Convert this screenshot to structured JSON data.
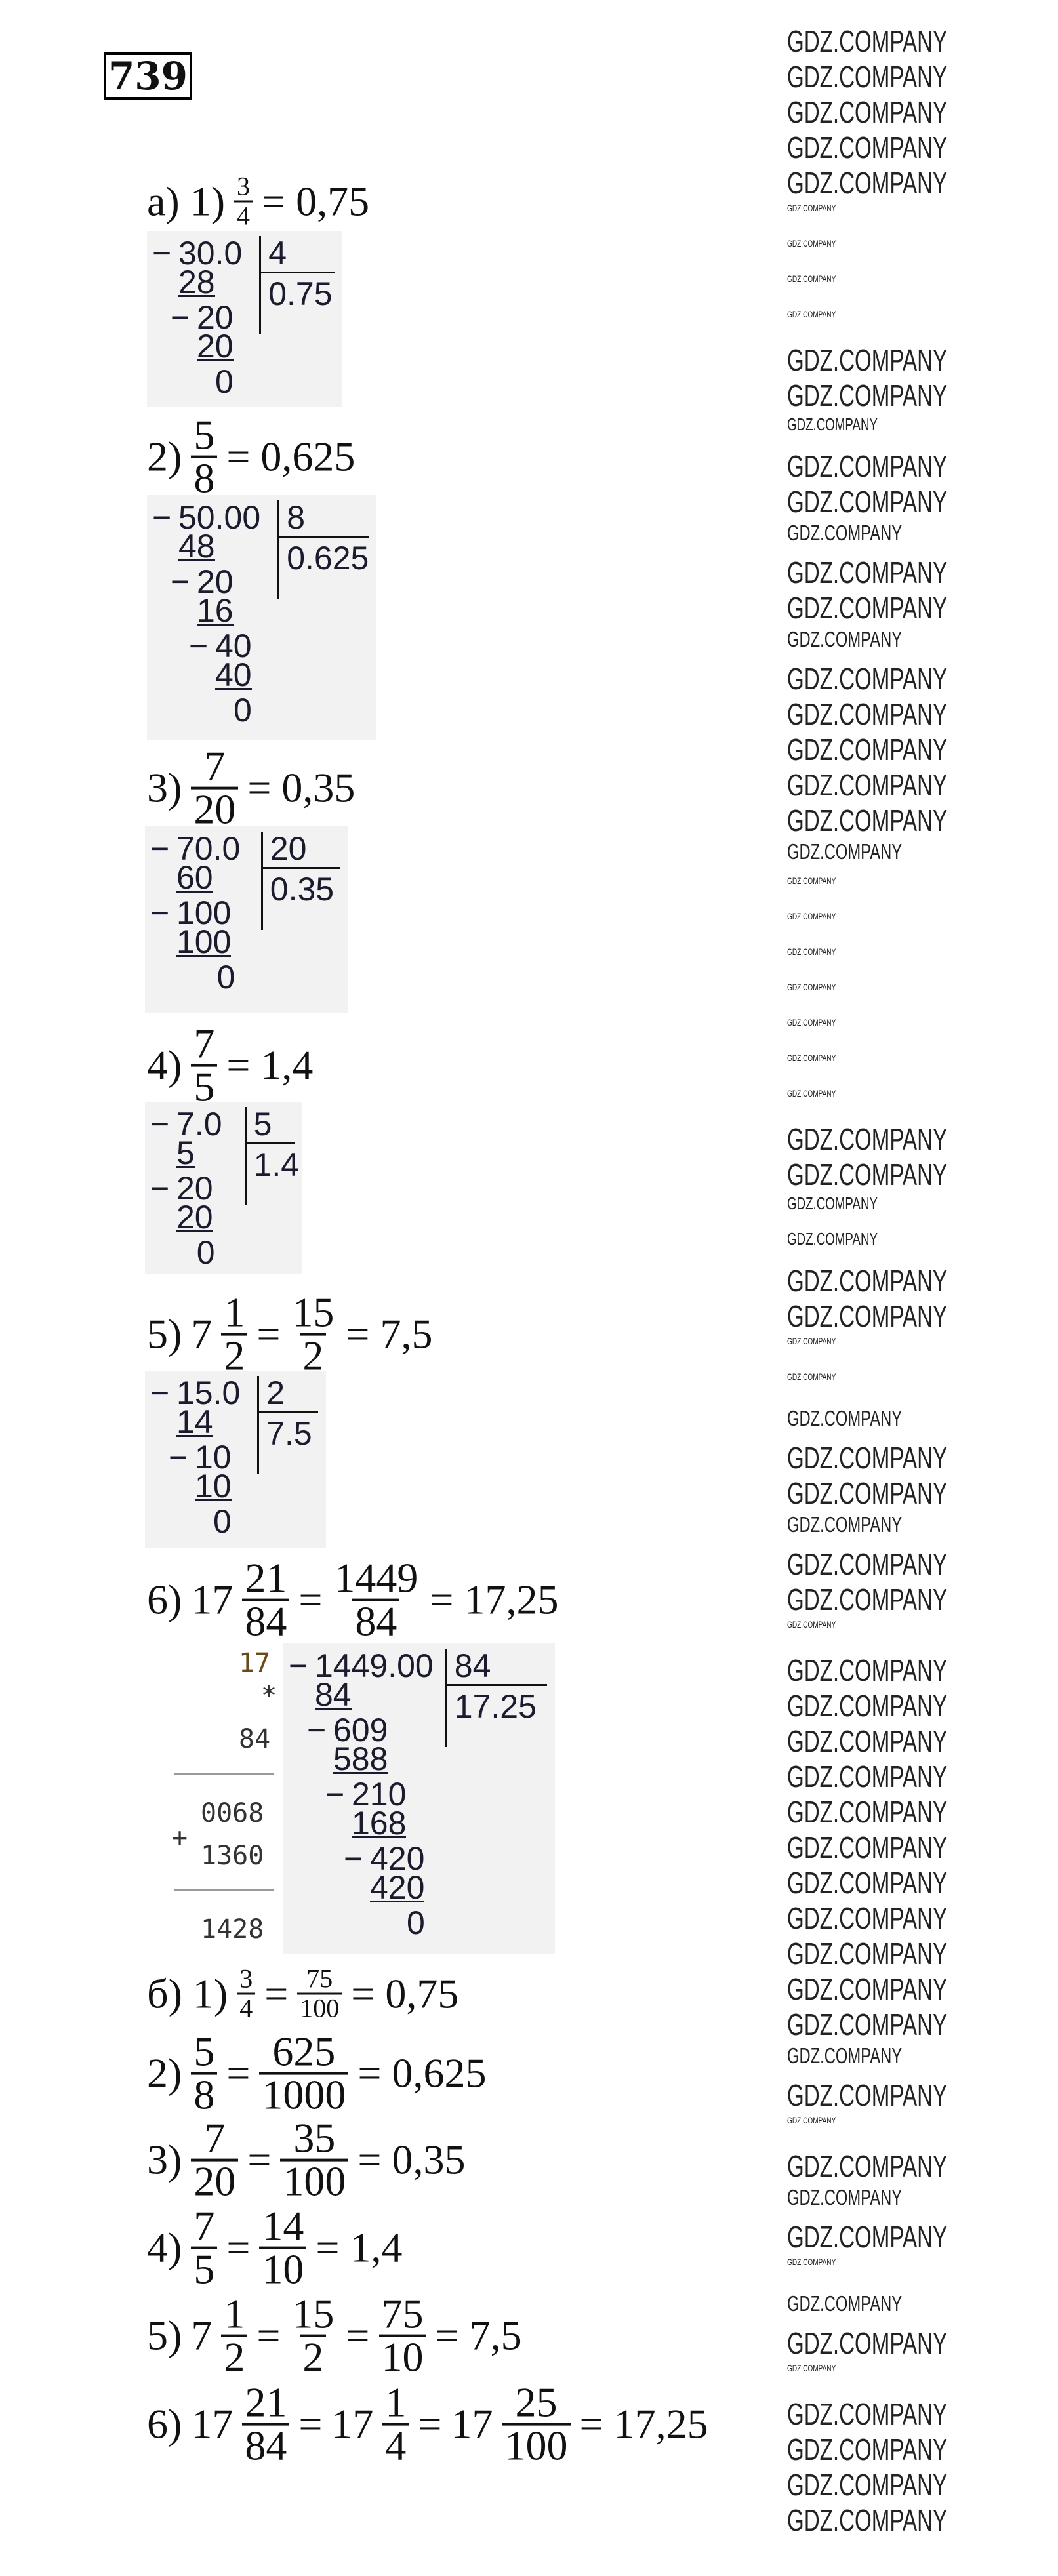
{
  "task_number": "739",
  "watermark": "GDZ.COMPANY",
  "minus_sign": "−",
  "part_a": [
    {
      "tokens": [
        {
          "t": "a) 1)"
        },
        {
          "n": "3",
          "d": "4",
          "small": true
        },
        {
          "t": "= 0,75"
        }
      ]
    },
    {
      "tokens": [
        {
          "t": "2)"
        },
        {
          "n": "5",
          "d": "8"
        },
        {
          "t": "= 0,625"
        }
      ]
    },
    {
      "tokens": [
        {
          "t": "3)"
        },
        {
          "n": "7",
          "d": "20"
        },
        {
          "t": "= 0,35"
        }
      ]
    },
    {
      "tokens": [
        {
          "t": "4)"
        },
        {
          "n": "7",
          "d": "5"
        },
        {
          "t": "= 1,4"
        }
      ]
    },
    {
      "tokens": [
        {
          "t": "5)"
        },
        {
          "t": "7"
        },
        {
          "n": "1",
          "d": "2"
        },
        {
          "t": "="
        },
        {
          "n": "15",
          "d": "2"
        },
        {
          "t": "= 7,5"
        }
      ]
    },
    {
      "tokens": [
        {
          "t": "6)"
        },
        {
          "t": "17"
        },
        {
          "n": "21",
          "d": "84"
        },
        {
          "t": "="
        },
        {
          "n": "1449",
          "d": "84"
        },
        {
          "t": "= 17,25"
        }
      ]
    }
  ],
  "divisions": [
    {
      "dividend": "30.0",
      "divisor": "4",
      "quotient": "0.75",
      "steps": [
        {
          "v": "28",
          "u": true
        },
        {
          "v": "20",
          "m": true
        },
        {
          "v": "20",
          "u": true
        },
        {
          "v": "0"
        }
      ]
    },
    {
      "dividend": "50.00",
      "divisor": "8",
      "quotient": "0.625",
      "steps": [
        {
          "v": "48",
          "u": true
        },
        {
          "v": "20",
          "m": true
        },
        {
          "v": "16",
          "u": true
        },
        {
          "v": "40",
          "m": true
        },
        {
          "v": "40",
          "u": true
        },
        {
          "v": "0"
        }
      ]
    },
    {
      "dividend": "70.0",
      "divisor": "20",
      "quotient": "0.35",
      "steps": [
        {
          "v": "60",
          "u": true
        },
        {
          "v": "100",
          "m": true
        },
        {
          "v": "100",
          "u": true
        },
        {
          "v": "0"
        }
      ]
    },
    {
      "dividend": "7.0",
      "divisor": "5",
      "quotient": "1.4",
      "steps": [
        {
          "v": "5",
          "u": true
        },
        {
          "v": "20",
          "m": true
        },
        {
          "v": "20",
          "u": true
        },
        {
          "v": "0"
        }
      ]
    },
    {
      "dividend": "15.0",
      "divisor": "2",
      "quotient": "7.5",
      "steps": [
        {
          "v": "14",
          "u": true
        },
        {
          "v": "10",
          "m": true
        },
        {
          "v": "10",
          "u": true
        },
        {
          "v": "0"
        }
      ]
    },
    {
      "dividend": "1449.00",
      "divisor": "84",
      "quotient": "17.25",
      "steps": [
        {
          "v": "84",
          "u": true
        },
        {
          "v": "609",
          "m": true
        },
        {
          "v": "588",
          "u": true
        },
        {
          "v": "210",
          "m": true
        },
        {
          "v": "168",
          "u": true
        },
        {
          "v": "420",
          "m": true
        },
        {
          "v": "420",
          "u": true
        },
        {
          "v": "0"
        }
      ]
    }
  ],
  "multiplication": {
    "a": "17",
    "op": "*",
    "b": "84",
    "p1": "0068",
    "plus": "+",
    "p2": "1360",
    "result": "1428"
  },
  "part_b": [
    {
      "tokens": [
        {
          "t": "б) 1)"
        },
        {
          "n": "3",
          "d": "4",
          "small": true
        },
        {
          "t": "="
        },
        {
          "n": "75",
          "d": "100",
          "small": true
        },
        {
          "t": "= 0,75"
        }
      ]
    },
    {
      "tokens": [
        {
          "t": "2)"
        },
        {
          "n": "5",
          "d": "8"
        },
        {
          "t": "="
        },
        {
          "n": "625",
          "d": "1000"
        },
        {
          "t": "= 0,625"
        }
      ]
    },
    {
      "tokens": [
        {
          "t": "3)"
        },
        {
          "n": "7",
          "d": "20"
        },
        {
          "t": "="
        },
        {
          "n": "35",
          "d": "100"
        },
        {
          "t": "= 0,35"
        }
      ]
    },
    {
      "tokens": [
        {
          "t": "4)"
        },
        {
          "n": "7",
          "d": "5"
        },
        {
          "t": "="
        },
        {
          "n": "14",
          "d": "10"
        },
        {
          "t": "= 1,4"
        }
      ]
    },
    {
      "tokens": [
        {
          "t": "5)"
        },
        {
          "t": "7"
        },
        {
          "n": "1",
          "d": "2"
        },
        {
          "t": "="
        },
        {
          "n": "15",
          "d": "2"
        },
        {
          "t": "="
        },
        {
          "n": "75",
          "d": "10"
        },
        {
          "t": "= 7,5"
        }
      ]
    },
    {
      "tokens": [
        {
          "t": "6)"
        },
        {
          "t": "17"
        },
        {
          "n": "21",
          "d": "84"
        },
        {
          "t": "="
        },
        {
          "t": "17"
        },
        {
          "n": "1",
          "d": "4"
        },
        {
          "t": "="
        },
        {
          "t": "17"
        },
        {
          "n": "25",
          "d": "100"
        },
        {
          "t": "= 17,25"
        }
      ]
    }
  ]
}
